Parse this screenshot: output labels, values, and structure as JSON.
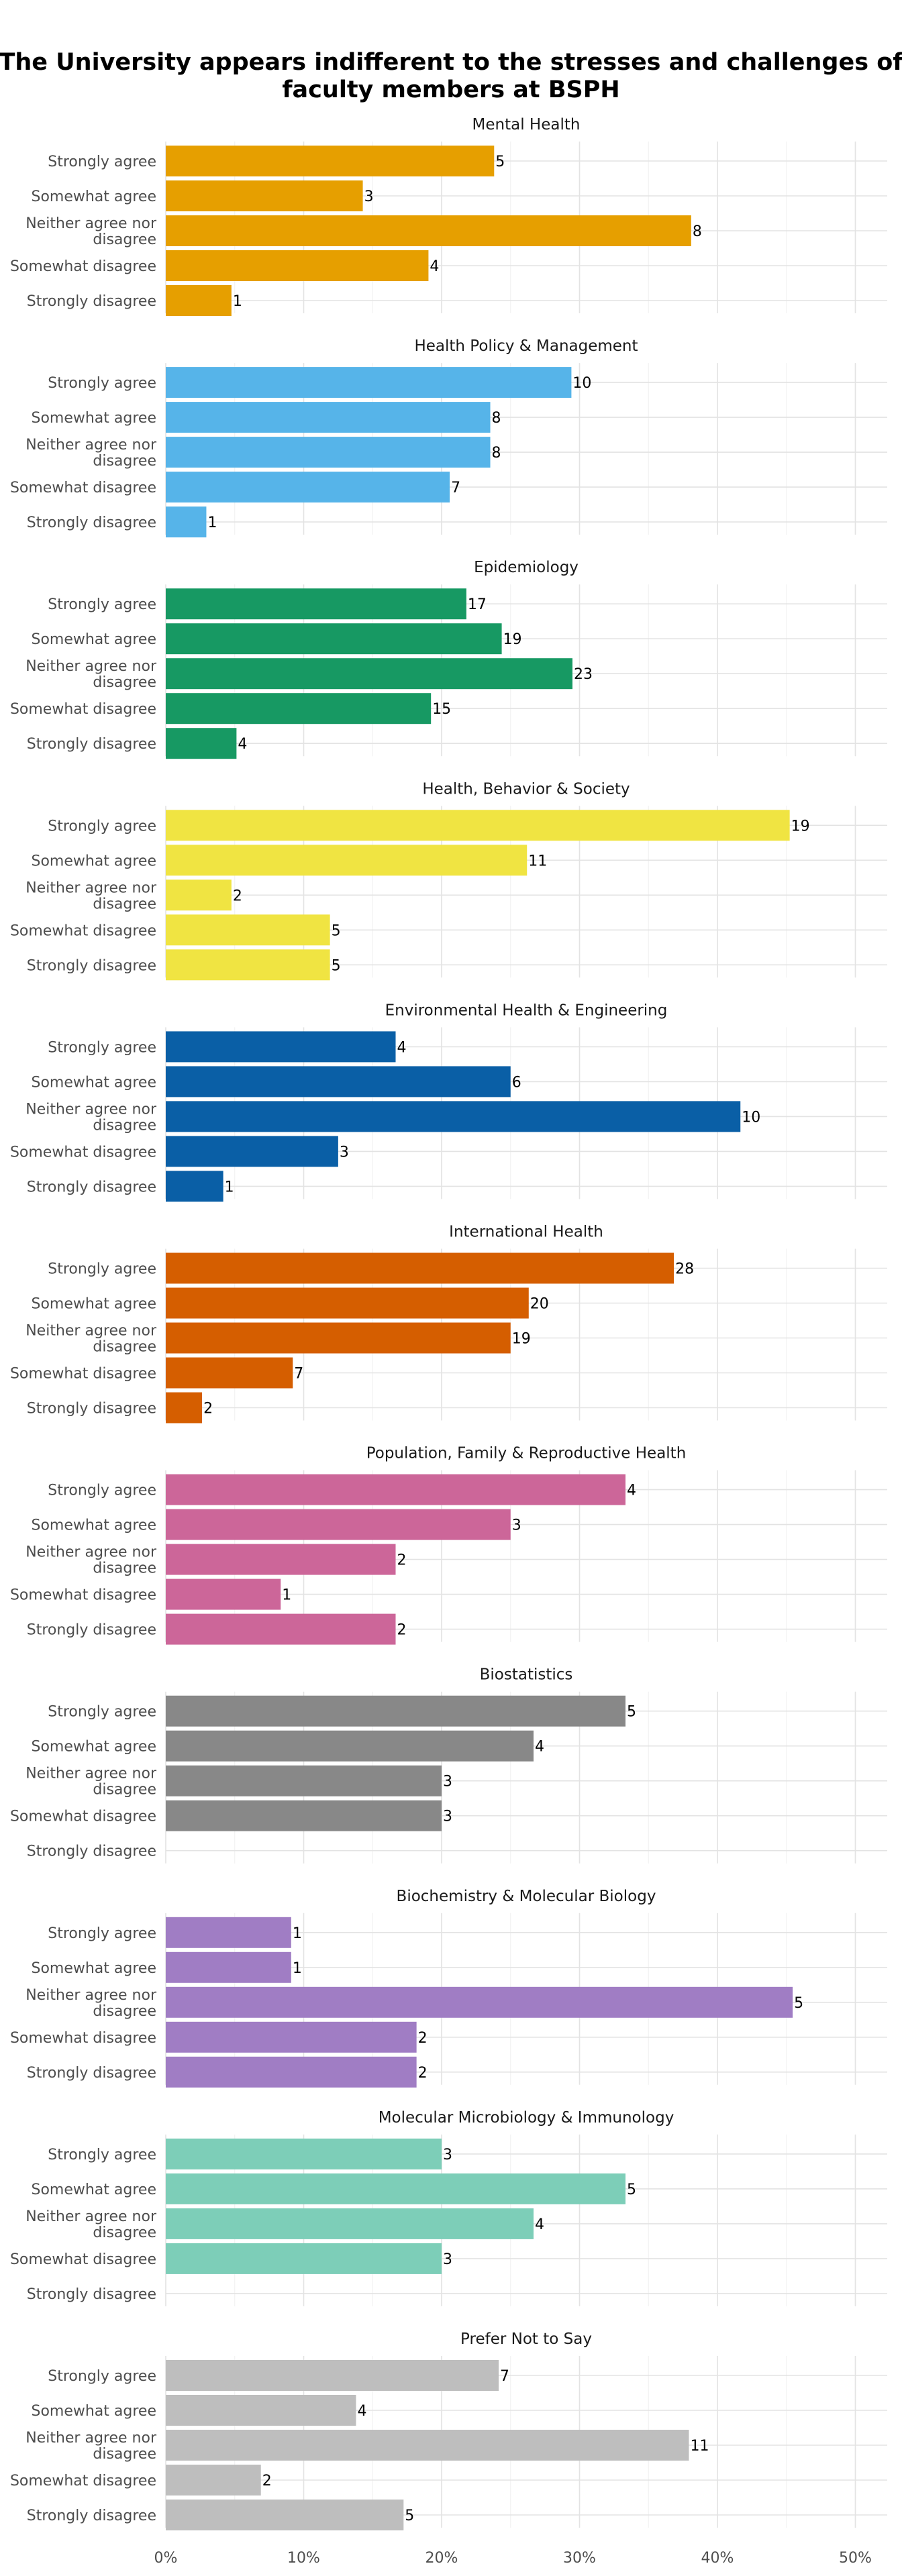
{
  "chart_data": {
    "type": "bar",
    "orientation": "horizontal",
    "title": "The University appears indifferent to the stresses and challenges of faculty members at BSPH",
    "xlabel": "",
    "ylabel": "",
    "xlim": [
      0,
      0.52
    ],
    "x_ticks": [
      0,
      0.1,
      0.2,
      0.3,
      0.4,
      0.5
    ],
    "x_tick_labels": [
      "0%",
      "10%",
      "20%",
      "30%",
      "40%",
      "50%"
    ],
    "grid": true,
    "legend": "none",
    "categories": [
      "Strongly agree",
      "Somewhat agree",
      "Neither agree nor disagree",
      "Somewhat disagree",
      "Strongly disagree"
    ],
    "facets": [
      {
        "name": "Mental Health",
        "color": "#E69F00",
        "counts": [
          5,
          3,
          8,
          4,
          1
        ]
      },
      {
        "name": "Health Policy & Management",
        "color": "#56B4E9",
        "counts": [
          10,
          8,
          8,
          7,
          1
        ]
      },
      {
        "name": "Epidemiology",
        "color": "#179963",
        "counts": [
          17,
          19,
          23,
          15,
          4
        ]
      },
      {
        "name": "Health, Behavior & Society",
        "color": "#F0E442",
        "counts": [
          19,
          11,
          2,
          5,
          5
        ]
      },
      {
        "name": "Environmental Health & Engineering",
        "color": "#0A5FA6",
        "counts": [
          4,
          6,
          10,
          3,
          1
        ]
      },
      {
        "name": "International Health",
        "color": "#D55E00",
        "counts": [
          28,
          20,
          19,
          7,
          2
        ]
      },
      {
        "name": "Population, Family & Reproductive Health",
        "color": "#CC6699",
        "counts": [
          4,
          3,
          2,
          1,
          2
        ]
      },
      {
        "name": "Biostatistics",
        "color": "#888888",
        "counts": [
          5,
          4,
          3,
          3,
          null
        ]
      },
      {
        "name": "Biochemistry & Molecular Biology",
        "color": "#A07DC4",
        "counts": [
          1,
          1,
          5,
          2,
          2
        ]
      },
      {
        "name": "Molecular Microbiology & Immunology",
        "color": "#7DCEB8",
        "counts": [
          3,
          5,
          4,
          3,
          null
        ]
      },
      {
        "name": "Prefer Not to Say",
        "color": "#BEBEBE",
        "counts": [
          7,
          4,
          11,
          2,
          5
        ]
      }
    ]
  }
}
